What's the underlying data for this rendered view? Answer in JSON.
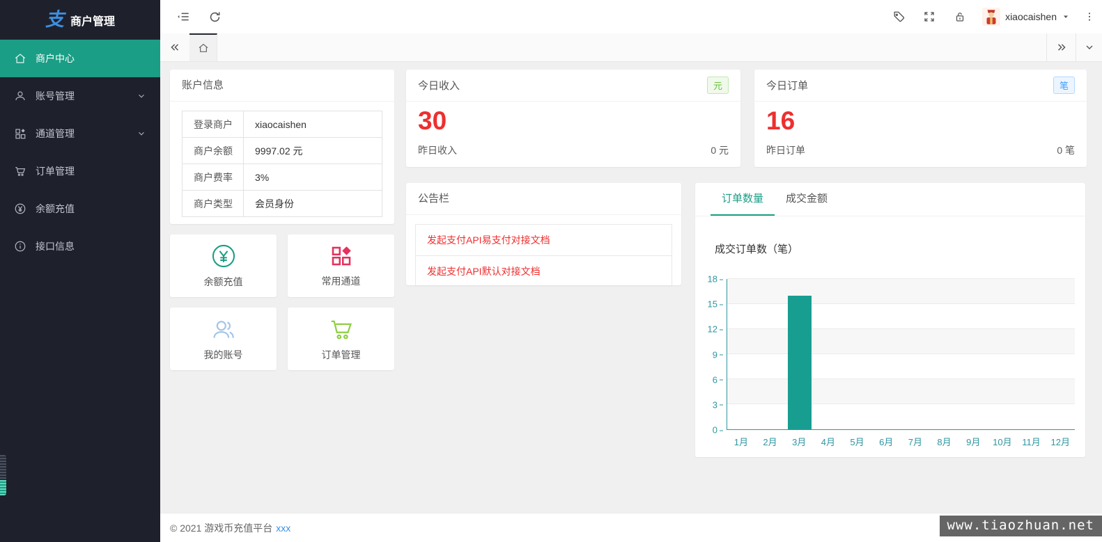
{
  "app": {
    "title": "商户管理"
  },
  "sidebar": {
    "logo": "商户管理",
    "items": [
      {
        "label": "商户中心"
      },
      {
        "label": "账号管理"
      },
      {
        "label": "通道管理"
      },
      {
        "label": "订单管理"
      },
      {
        "label": "余额充值"
      },
      {
        "label": "接口信息"
      }
    ]
  },
  "header": {
    "username": "xiaocaishen"
  },
  "account_card": {
    "title": "账户信息",
    "rows": [
      {
        "label": "登录商户",
        "value": "xiaocaishen"
      },
      {
        "label": "商户余额",
        "value": "9997.02 元"
      },
      {
        "label": "商户费率",
        "value": "3%"
      },
      {
        "label": "商户类型",
        "value": "会员身份"
      }
    ]
  },
  "shortcuts": [
    {
      "label": "余额充值"
    },
    {
      "label": "常用通道"
    },
    {
      "label": "我的账号"
    },
    {
      "label": "订单管理"
    }
  ],
  "stat_cards": [
    {
      "title": "今日收入",
      "badge": "元",
      "badge_type": "success",
      "value": "30",
      "footer_label": "昨日收入",
      "footer_value": "0 元"
    },
    {
      "title": "今日订单",
      "badge": "笔",
      "badge_type": "primary",
      "value": "16",
      "footer_label": "昨日订单",
      "footer_value": "0 笔"
    }
  ],
  "notice_card": {
    "title": "公告栏",
    "links": [
      {
        "label": "发起支付API易支付对接文档"
      },
      {
        "label": "发起支付API默认对接文档"
      }
    ]
  },
  "chart_card": {
    "tabs": [
      {
        "label": "订单数量",
        "active": true
      },
      {
        "label": "成交金额",
        "active": false
      }
    ]
  },
  "chart_data": {
    "type": "bar",
    "title": "成交订单数（笔）",
    "categories": [
      "1月",
      "2月",
      "3月",
      "4月",
      "5月",
      "6月",
      "7月",
      "8月",
      "9月",
      "10月",
      "11月",
      "12月"
    ],
    "values": [
      0,
      0,
      16,
      0,
      0,
      0,
      0,
      0,
      0,
      0,
      0,
      0
    ],
    "xlabel": "",
    "ylabel": "",
    "ylim": [
      0,
      18
    ],
    "yticks": [
      0,
      3,
      6,
      9,
      12,
      15,
      18
    ],
    "grid": true,
    "legend_position": "none",
    "bar_color": "#189e91",
    "axis_color": "#2e96a0"
  },
  "footer": {
    "copyright": "© 2021 游戏币充值平台",
    "link": "xxx"
  },
  "watermark": "www.tiaozhuan.net",
  "colors": {
    "accent": "#1a9e85",
    "danger": "#ee2f2f",
    "success": "#67c23a",
    "primary": "#409eff",
    "sidebar_bg": "#1e212c"
  }
}
